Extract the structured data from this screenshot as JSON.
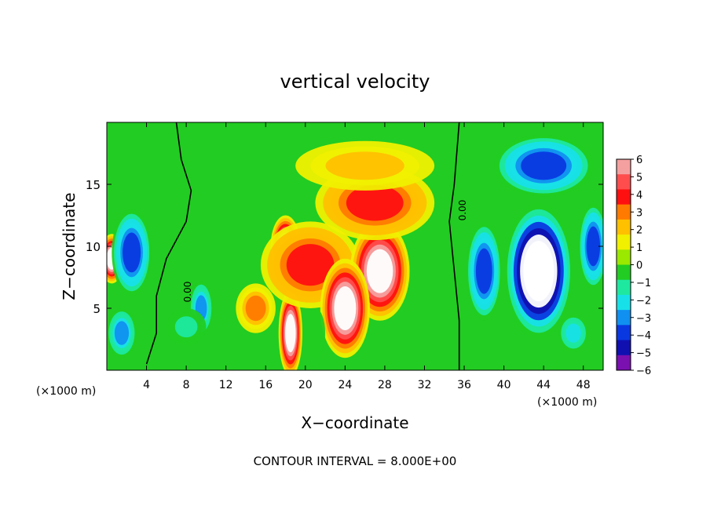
{
  "chart_data": {
    "type": "heatmap",
    "title": "vertical velocity",
    "xlabel": "X−coordinate",
    "ylabel": "Z−coordinate",
    "x_unit_left": "(×1000 m)",
    "x_unit_right": "(×1000 m)",
    "footer": "CONTOUR INTERVAL = 8.000E+00",
    "xlim": [
      0,
      50
    ],
    "ylim": [
      0,
      20
    ],
    "x_ticks": [
      4,
      8,
      12,
      16,
      20,
      24,
      28,
      32,
      36,
      40,
      44,
      48
    ],
    "y_ticks": [
      5,
      10,
      15
    ],
    "colorbar": {
      "ticks": [
        6,
        5,
        4,
        3,
        2,
        1,
        0,
        -1,
        -2,
        -3,
        -4,
        -5,
        -6
      ],
      "tick_labels": [
        "6",
        "5",
        "4",
        "3",
        "2",
        "1",
        "0",
        "−1",
        "−2",
        "−3",
        "−4",
        "−5",
        "−6"
      ],
      "colors": [
        "#f5a0a0",
        "#ff4d4d",
        "#ff1010",
        "#ff7a00",
        "#ffc000",
        "#f0f000",
        "#9be800",
        "#22cc22",
        "#1ee8a0",
        "#18e0e8",
        "#1090f0",
        "#0a38e0",
        "#1010b0",
        "#7a10b0"
      ]
    },
    "contour_labels": [
      "0.00",
      "0.00"
    ],
    "field_blobs": [
      {
        "x": 0.5,
        "z": 9.0,
        "sx": 1.2,
        "sz": 2.0,
        "w": 7
      },
      {
        "x": 2.5,
        "z": 9.5,
        "sx": 2.0,
        "sz": 3.5,
        "w": -5
      },
      {
        "x": 1.5,
        "z": 3.0,
        "sx": 1.5,
        "sz": 2.0,
        "w": -4
      },
      {
        "x": 9.5,
        "z": 5.0,
        "sx": 1.2,
        "sz": 2.2,
        "w": -4
      },
      {
        "x": 8.0,
        "z": 3.5,
        "sx": 2.0,
        "sz": 1.5,
        "w": -2
      },
      {
        "x": 18.0,
        "z": 10.0,
        "sx": 1.5,
        "sz": 2.5,
        "w": 7
      },
      {
        "x": 18.5,
        "z": 3.0,
        "sx": 1.2,
        "sz": 3.5,
        "w": 7
      },
      {
        "x": 20.5,
        "z": 8.5,
        "sx": 5.0,
        "sz": 3.5,
        "w": 4
      },
      {
        "x": 27.5,
        "z": 8.0,
        "sx": 3.0,
        "sz": 4.0,
        "w": 7
      },
      {
        "x": 24.0,
        "z": 5.0,
        "sx": 2.5,
        "sz": 4.0,
        "w": 7
      },
      {
        "x": 27.0,
        "z": 13.5,
        "sx": 6.0,
        "sz": 3.0,
        "w": 4
      },
      {
        "x": 26.0,
        "z": 16.5,
        "sx": 7.0,
        "sz": 2.0,
        "w": 2
      },
      {
        "x": 15.0,
        "z": 5.0,
        "sx": 2.0,
        "sz": 2.0,
        "w": 3
      },
      {
        "x": 21.0,
        "z": 3.0,
        "sx": 1.0,
        "sz": 2.0,
        "w": -1
      },
      {
        "x": 43.5,
        "z": 8.0,
        "sx": 3.5,
        "sz": 5.5,
        "w": -8
      },
      {
        "x": 44.0,
        "z": 16.5,
        "sx": 5.0,
        "sz": 2.5,
        "w": -5
      },
      {
        "x": 38.0,
        "z": 8.0,
        "sx": 1.8,
        "sz": 4.0,
        "w": -5
      },
      {
        "x": 49.0,
        "z": 10.0,
        "sx": 1.5,
        "sz": 3.5,
        "w": -5
      },
      {
        "x": 47.0,
        "z": 3.0,
        "sx": 1.5,
        "sz": 1.5,
        "w": -3
      }
    ],
    "zero_contours": [
      [
        [
          7.0,
          20.0
        ],
        [
          7.5,
          17.0
        ],
        [
          8.5,
          14.5
        ],
        [
          8.0,
          12.0
        ],
        [
          6.0,
          9.0
        ],
        [
          5.0,
          6.0
        ],
        [
          5.0,
          3.0
        ],
        [
          4.0,
          0.5
        ]
      ],
      [
        [
          35.5,
          20.0
        ],
        [
          35.0,
          15.0
        ],
        [
          34.5,
          12.0
        ],
        [
          35.0,
          8.0
        ],
        [
          35.5,
          4.0
        ],
        [
          35.5,
          0.0
        ]
      ]
    ]
  }
}
